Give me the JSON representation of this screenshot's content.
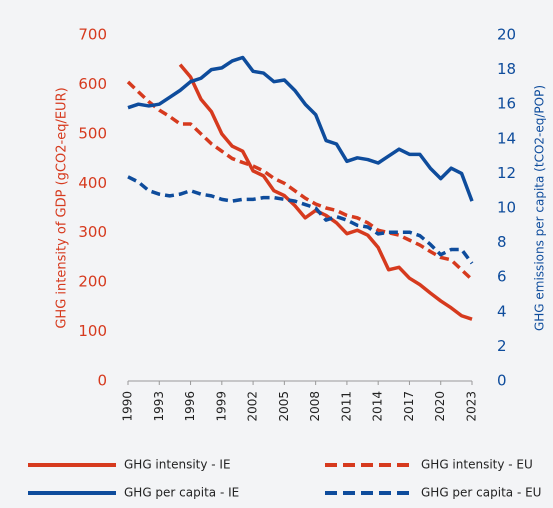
{
  "chart_data": {
    "type": "line",
    "y_label": "GHG intensity of GDP (gCO2-eq/EUR)",
    "y2_label": "GHG emissions per capita (tCO2-eq/POP)",
    "x": [
      1990,
      1991,
      1992,
      1993,
      1994,
      1995,
      1996,
      1997,
      1998,
      1999,
      2000,
      2001,
      2002,
      2003,
      2004,
      2005,
      2006,
      2007,
      2008,
      2009,
      2010,
      2011,
      2012,
      2013,
      2014,
      2015,
      2016,
      2017,
      2018,
      2019,
      2020,
      2021,
      2022,
      2023
    ],
    "xlim": [
      1990,
      2023
    ],
    "xticks": [
      1990,
      1993,
      1996,
      1999,
      2002,
      2005,
      2008,
      2011,
      2014,
      2017,
      2020,
      2023
    ],
    "ylim": [
      0,
      700
    ],
    "yticks": [
      0,
      100,
      200,
      300,
      400,
      500,
      600,
      700
    ],
    "y2lim": [
      0,
      20
    ],
    "y2ticks": [
      0,
      2,
      4,
      6,
      8,
      10,
      12,
      14,
      16,
      18,
      20
    ],
    "series": [
      {
        "name": "GHG intensity - IE",
        "color": "#d63a1e",
        "style": "solid",
        "values": [
          null,
          null,
          null,
          null,
          null,
          640,
          615,
          570,
          545,
          500,
          475,
          465,
          425,
          415,
          385,
          375,
          355,
          330,
          345,
          335,
          320,
          298,
          305,
          295,
          270,
          225,
          230,
          208,
          195,
          178,
          162,
          148,
          132,
          125
        ]
      },
      {
        "name": "GHG intensity - EU",
        "color": "#d63a1e",
        "style": "dashed",
        "values": [
          605,
          585,
          565,
          548,
          535,
          520,
          520,
          500,
          480,
          465,
          450,
          442,
          435,
          425,
          410,
          400,
          385,
          370,
          358,
          350,
          345,
          335,
          330,
          320,
          305,
          300,
          295,
          285,
          275,
          262,
          250,
          245,
          225,
          205
        ]
      },
      {
        "name": "GHG per capita - IE",
        "color": "#0e4c9c",
        "style": "solid",
        "axis": "y2",
        "values": [
          15.8,
          16.0,
          15.9,
          16.0,
          16.4,
          16.8,
          17.3,
          17.5,
          18.0,
          18.1,
          18.5,
          18.7,
          17.9,
          17.8,
          17.3,
          17.4,
          16.8,
          16.0,
          15.4,
          13.9,
          13.7,
          12.7,
          12.9,
          12.8,
          12.6,
          13.0,
          13.4,
          13.1,
          13.1,
          12.3,
          11.7,
          12.3,
          12.0,
          10.4
        ]
      },
      {
        "name": "GHG per capita - EU",
        "color": "#0e4c9c",
        "style": "dashed",
        "axis": "y2",
        "values": [
          11.8,
          11.5,
          11.0,
          10.8,
          10.7,
          10.8,
          11.0,
          10.8,
          10.7,
          10.5,
          10.4,
          10.5,
          10.5,
          10.6,
          10.6,
          10.5,
          10.4,
          10.2,
          10.0,
          9.3,
          9.5,
          9.3,
          9.0,
          8.9,
          8.5,
          8.6,
          8.6,
          8.6,
          8.4,
          7.9,
          7.3,
          7.6,
          7.6,
          6.8
        ]
      }
    ],
    "left_axis_color": "#d63a1e",
    "right_axis_color": "#0e4c9c"
  }
}
